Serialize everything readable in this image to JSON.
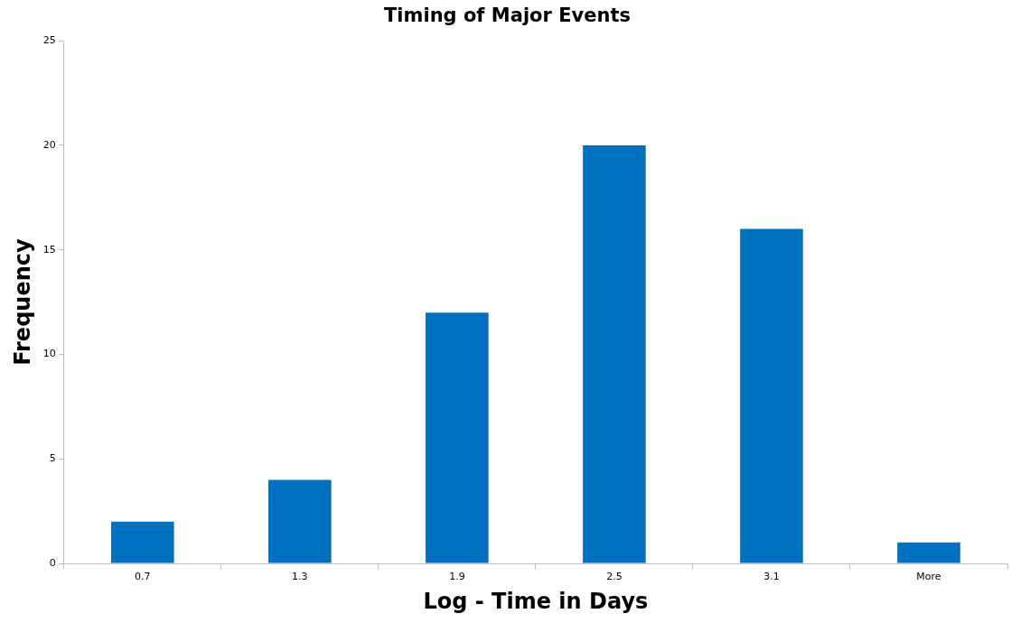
{
  "chart_data": {
    "type": "bar",
    "title": "Timing of Major Events",
    "xlabel": "Log - Time in Days",
    "ylabel": "Frequency",
    "categories": [
      "0.7",
      "1.3",
      "1.9",
      "2.5",
      "3.1",
      "More"
    ],
    "values": [
      2,
      4,
      12,
      20,
      16,
      1
    ],
    "color": "#0070c0",
    "ylim": [
      0,
      25
    ],
    "yticks": [
      0,
      5,
      10,
      15,
      20,
      25
    ],
    "grid": false,
    "legend": false
  }
}
